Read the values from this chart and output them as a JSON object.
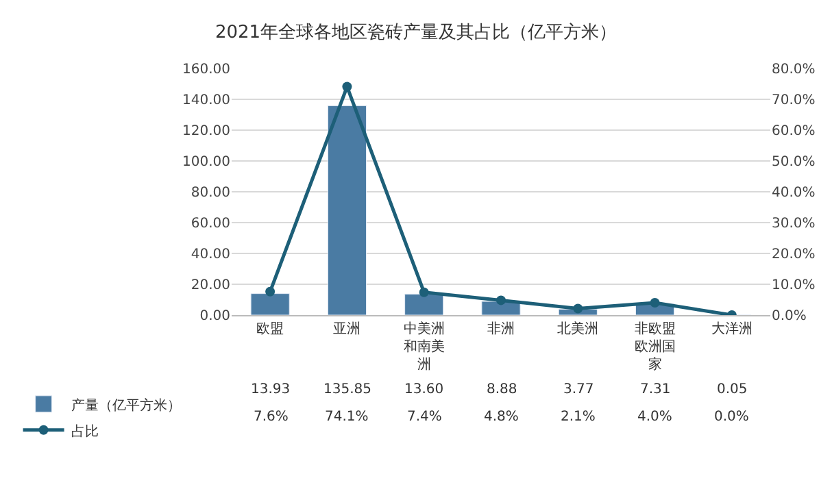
{
  "chart_data": {
    "type": "bar",
    "title": "2021年全球各地区瓷砖产量及其占比（亿平方米）",
    "categories": [
      "欧盟",
      "亚洲",
      "中美洲和南美洲",
      "非洲",
      "北美洲",
      "非欧盟欧洲国家",
      "大洋洲"
    ],
    "series": [
      {
        "name": "产量（亿平方米）",
        "color": "#4a7ba3",
        "values": [
          13.93,
          135.85,
          13.6,
          8.88,
          3.77,
          7.31,
          0.05
        ],
        "value_labels": [
          "13.93",
          "135.85",
          "13.60",
          "8.88",
          "3.77",
          "7.31",
          "0.05"
        ]
      },
      {
        "name": "占比",
        "type": "line",
        "axis": "y2",
        "color": "#1d5f78",
        "values": [
          7.6,
          74.1,
          7.4,
          4.8,
          2.1,
          4.0,
          0.0
        ],
        "value_labels": [
          "7.6%",
          "74.1%",
          "7.4%",
          "4.8%",
          "2.1%",
          "4.0%",
          "0.0%"
        ]
      }
    ],
    "ylim": [
      0,
      160
    ],
    "yticks": [
      {
        "value": 0,
        "label": "0.00"
      },
      {
        "value": 20,
        "label": "20.00"
      },
      {
        "value": 40,
        "label": "40.00"
      },
      {
        "value": 60,
        "label": "60.00"
      },
      {
        "value": 80,
        "label": "80.00"
      },
      {
        "value": 100,
        "label": "100.00"
      },
      {
        "value": 120,
        "label": "120.00"
      },
      {
        "value": 140,
        "label": "140.00"
      },
      {
        "value": 160,
        "label": "160.00"
      }
    ],
    "y2lim": [
      0,
      80
    ],
    "y2ticks": [
      {
        "value": 0,
        "label": "0.0%"
      },
      {
        "value": 10,
        "label": "10.0%"
      },
      {
        "value": 20,
        "label": "20.0%"
      },
      {
        "value": 30,
        "label": "30.0%"
      },
      {
        "value": 40,
        "label": "40.0%"
      },
      {
        "value": 50,
        "label": "50.0%"
      },
      {
        "value": 60,
        "label": "60.0%"
      },
      {
        "value": 70,
        "label": "70.0%"
      },
      {
        "value": 80,
        "label": "80.0%"
      }
    ],
    "grid": "y",
    "legend": "bottom left",
    "marker": "circle",
    "line_style": "solid"
  }
}
